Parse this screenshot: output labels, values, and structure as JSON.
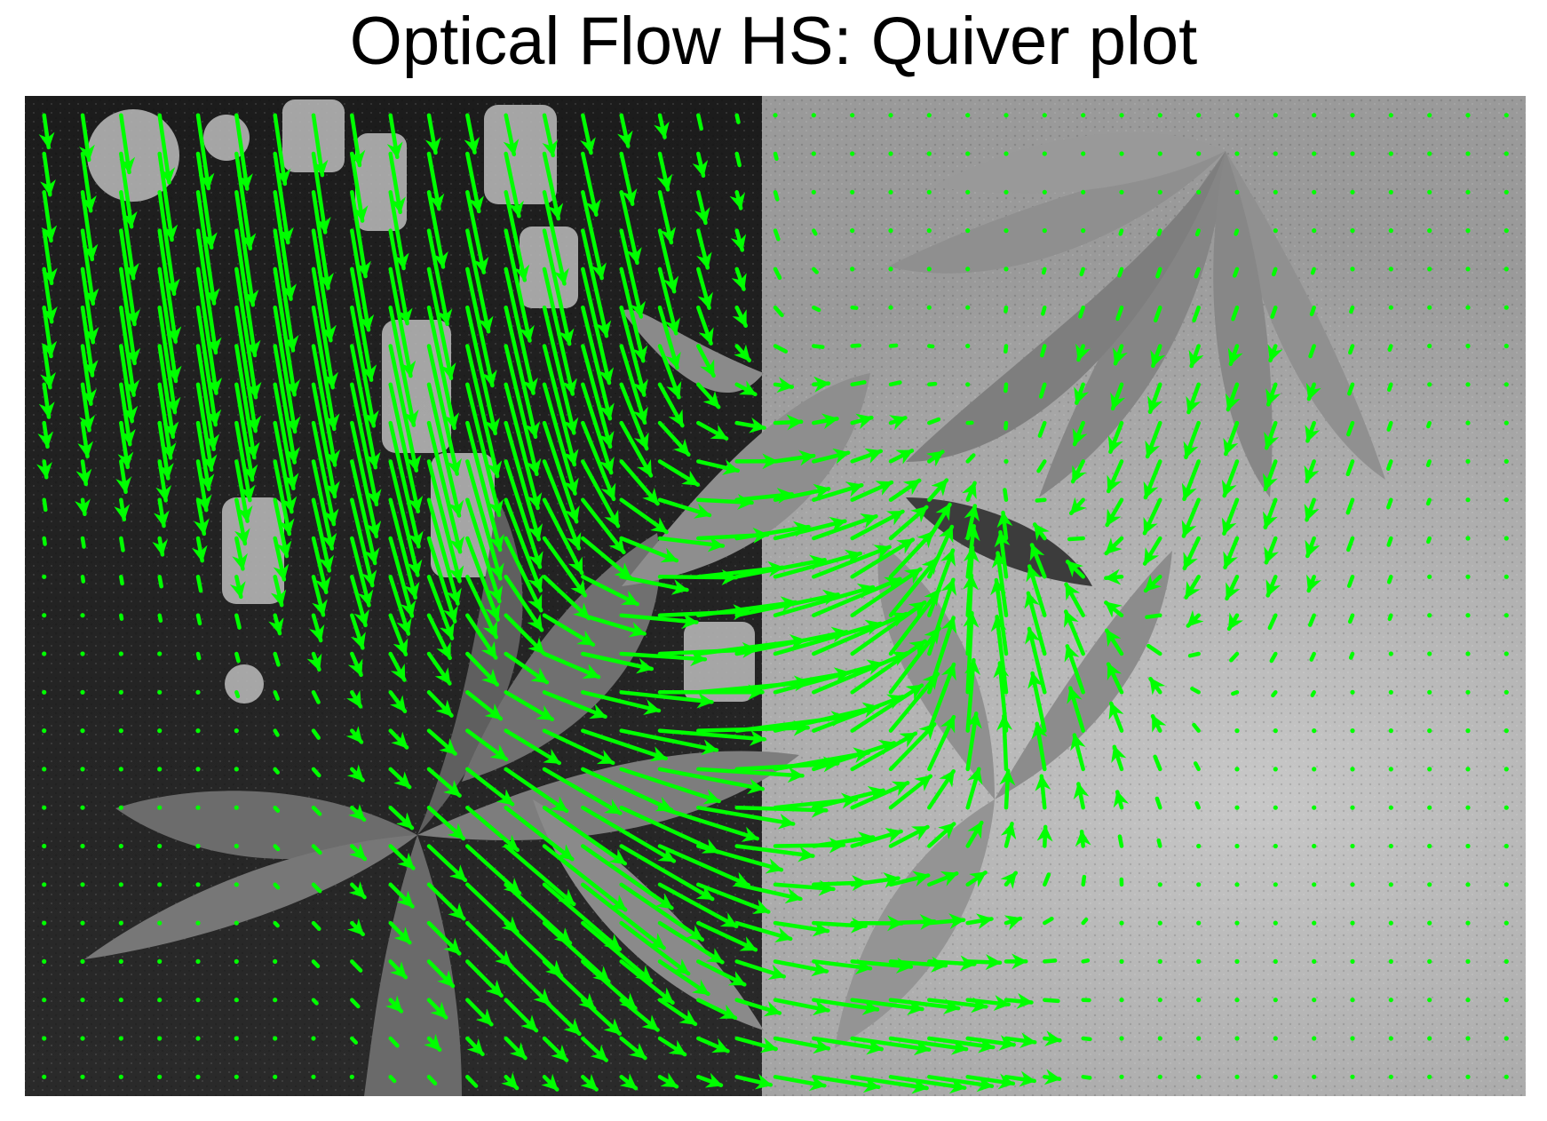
{
  "figure": {
    "title": "Optical Flow HS: Quiver plot"
  },
  "colors": {
    "arrow": "#00ff00",
    "background": "#ffffff",
    "title": "#000000",
    "image_dark": "#1e1e1e",
    "image_mid": "#6e6e6e",
    "image_light": "#bcbcbc"
  },
  "chart_data": {
    "type": "quiver",
    "title": "Optical Flow HS: Quiver plot",
    "xlabel": "",
    "ylabel": "",
    "axes_visible": false,
    "grid": false,
    "background_image": "grayscale photograph of a plant with leaves in front of a dark poster (left) and a light textured wall (right)",
    "xlim": [
      0,
      39
    ],
    "ylim": [
      0,
      26
    ],
    "y_direction": "down",
    "sampling": {
      "cols": 39,
      "rows": 26,
      "step": 1
    },
    "flow_regions": [
      {
        "name": "upper-left cluster",
        "x": 5,
        "y": 4,
        "radius": 3.5,
        "u": 0.6,
        "v": 4.2
      },
      {
        "name": "center-left vertical band",
        "x": 11,
        "y": 9,
        "radius": 3.2,
        "u": 0.9,
        "v": 3.8
      },
      {
        "name": "top center column",
        "x": 14,
        "y": 4,
        "radius": 2.5,
        "u": 0.7,
        "v": 3.2
      },
      {
        "name": "center fan",
        "x": 19,
        "y": 15,
        "radius": 3.8,
        "u": 3.8,
        "v": -0.8
      },
      {
        "name": "lower center",
        "x": 14,
        "y": 20,
        "radius": 3.0,
        "u": 2.2,
        "v": 2.4
      },
      {
        "name": "right swirl",
        "x": 25,
        "y": 15,
        "radius": 2.8,
        "u": -1.2,
        "v": -2.6
      },
      {
        "name": "bottom center",
        "x": 22,
        "y": 25,
        "radius": 2.5,
        "u": 2.6,
        "v": 0.4
      },
      {
        "name": "right leaf edge",
        "x": 30,
        "y": 10,
        "radius": 3.0,
        "u": -0.5,
        "v": 1.4
      }
    ]
  }
}
